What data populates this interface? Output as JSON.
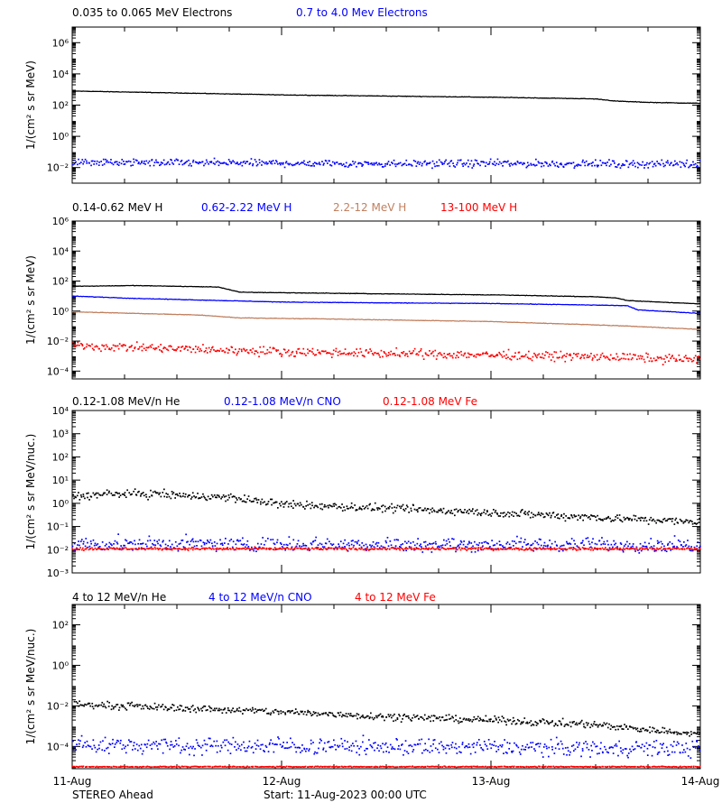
{
  "footer": {
    "spacecraft": "STEREO Ahead",
    "start": "Start: 11-Aug-2023 00:00 UTC"
  },
  "x_axis": {
    "ticks": [
      "11-Aug",
      "12-Aug",
      "13-Aug",
      "14-Aug"
    ]
  },
  "chart_data": [
    {
      "type": "scatter",
      "yscale": "log",
      "ylabel": "1/(cm² s sr MeV)",
      "ylim": [
        0.001,
        10000000
      ],
      "yticks": [
        "10⁻²",
        "10⁰",
        "10²",
        "10⁴",
        "10⁶"
      ],
      "xlim": [
        0,
        3
      ],
      "series": [
        {
          "name": "0.035 to 0.065 MeV Electrons",
          "color": "#000000",
          "style": "line",
          "x": [
            0,
            0.5,
            1,
            1.5,
            2,
            2.5,
            2.6,
            2.75,
            3
          ],
          "y": [
            800,
            600,
            450,
            380,
            320,
            250,
            180,
            150,
            130
          ]
        },
        {
          "name": "0.7 to 4.0 Mev Electrons",
          "color": "#0000ff",
          "style": "dots",
          "x": [
            0,
            0.5,
            1,
            1.5,
            2,
            2.5,
            3
          ],
          "y": [
            0.022,
            0.02,
            0.019,
            0.018,
            0.018,
            0.017,
            0.017
          ],
          "scatter": 0.2
        }
      ]
    },
    {
      "type": "scatter",
      "yscale": "log",
      "ylabel": "1/(cm² s sr MeV)",
      "ylim": [
        3e-05,
        1000000
      ],
      "yticks": [
        "10⁻⁴",
        "10⁻²",
        "10⁰",
        "10²",
        "10⁴",
        "10⁶"
      ],
      "xlim": [
        0,
        3
      ],
      "series": [
        {
          "name": "0.14-0.62 MeV H",
          "color": "#000000",
          "style": "line",
          "x": [
            0,
            0.3,
            0.7,
            0.8,
            1.5,
            2,
            2.5,
            2.6,
            2.65,
            3
          ],
          "y": [
            45,
            50,
            40,
            18,
            14,
            12,
            9,
            7.5,
            5,
            3
          ]
        },
        {
          "name": "0.62-2.22 MeV H",
          "color": "#0000ff",
          "style": "line",
          "x": [
            0,
            0.3,
            0.6,
            1,
            1.5,
            2,
            2.5,
            2.65,
            2.7,
            3
          ],
          "y": [
            10,
            7,
            5.5,
            4,
            3.5,
            3.2,
            2.5,
            2.3,
            1.2,
            0.7
          ]
        },
        {
          "name": "2.2-12 MeV H",
          "color": "#c08060",
          "style": "line",
          "x": [
            0,
            0.3,
            0.6,
            0.8,
            1.2,
            2,
            2.5,
            2.65,
            3
          ],
          "y": [
            0.9,
            0.7,
            0.55,
            0.35,
            0.3,
            0.2,
            0.12,
            0.1,
            0.06
          ]
        },
        {
          "name": "13-100 MeV H",
          "color": "#ff0000",
          "style": "dots",
          "x": [
            0,
            0.5,
            1,
            1.5,
            2,
            2.5,
            3
          ],
          "y": [
            0.005,
            0.003,
            0.002,
            0.0015,
            0.0012,
            0.0009,
            0.0006
          ],
          "scatter": 0.25
        }
      ]
    },
    {
      "type": "scatter",
      "yscale": "log",
      "ylabel": "1/(cm² s sr MeV/nuc.)",
      "ylim": [
        0.001,
        10000
      ],
      "yticks": [
        "10⁻³",
        "10⁻²",
        "10⁻¹",
        "10⁰",
        "10¹",
        "10²",
        "10³",
        "10⁴"
      ],
      "xlim": [
        0,
        3
      ],
      "series": [
        {
          "name": "0.12-1.08 MeV/n He",
          "color": "#000000",
          "style": "dots",
          "x": [
            0,
            0.2,
            0.4,
            0.6,
            0.75,
            1,
            1.5,
            2,
            2.5,
            3
          ],
          "y": [
            2,
            2.6,
            2.5,
            2,
            1.8,
            0.9,
            0.6,
            0.4,
            0.25,
            0.15
          ],
          "scatter": 0.15
        },
        {
          "name": "0.12-1.08 MeV/n CNO",
          "color": "#0000ff",
          "style": "dots",
          "x": [
            0,
            3
          ],
          "y": [
            0.018,
            0.016
          ],
          "scatter": 0.25
        },
        {
          "name": "0.12-1.08 MeV Fe",
          "color": "#ff0000",
          "style": "dots",
          "x": [
            0,
            3
          ],
          "y": [
            0.011,
            0.011
          ],
          "scatter": 0.05
        }
      ]
    },
    {
      "type": "scatter",
      "yscale": "log",
      "ylabel": "1/(cm² s sr MeV/nuc.)",
      "ylim": [
        8e-06,
        1000
      ],
      "yticks": [
        "10⁻⁴",
        "10⁻²",
        "10⁰",
        "10²"
      ],
      "xlim": [
        0,
        3
      ],
      "series": [
        {
          "name": "4 to 12 MeV/n He",
          "color": "#000000",
          "style": "dots",
          "x": [
            0,
            0.5,
            1,
            1.5,
            2,
            2.5,
            2.8,
            3
          ],
          "y": [
            0.012,
            0.008,
            0.005,
            0.003,
            0.002,
            0.0012,
            0.0006,
            0.0004
          ],
          "scatter": 0.15
        },
        {
          "name": "4 to 12 MeV/n CNO",
          "color": "#0000ff",
          "style": "dots",
          "x": [
            0,
            3
          ],
          "y": [
            0.00012,
            8e-05
          ],
          "scatter": 0.35
        },
        {
          "name": "4 to 12 MeV Fe",
          "color": "#ff0000",
          "style": "dots",
          "x": [
            0,
            3
          ],
          "y": [
            1e-05,
            1e-05
          ],
          "scatter": 0.02
        }
      ]
    }
  ]
}
